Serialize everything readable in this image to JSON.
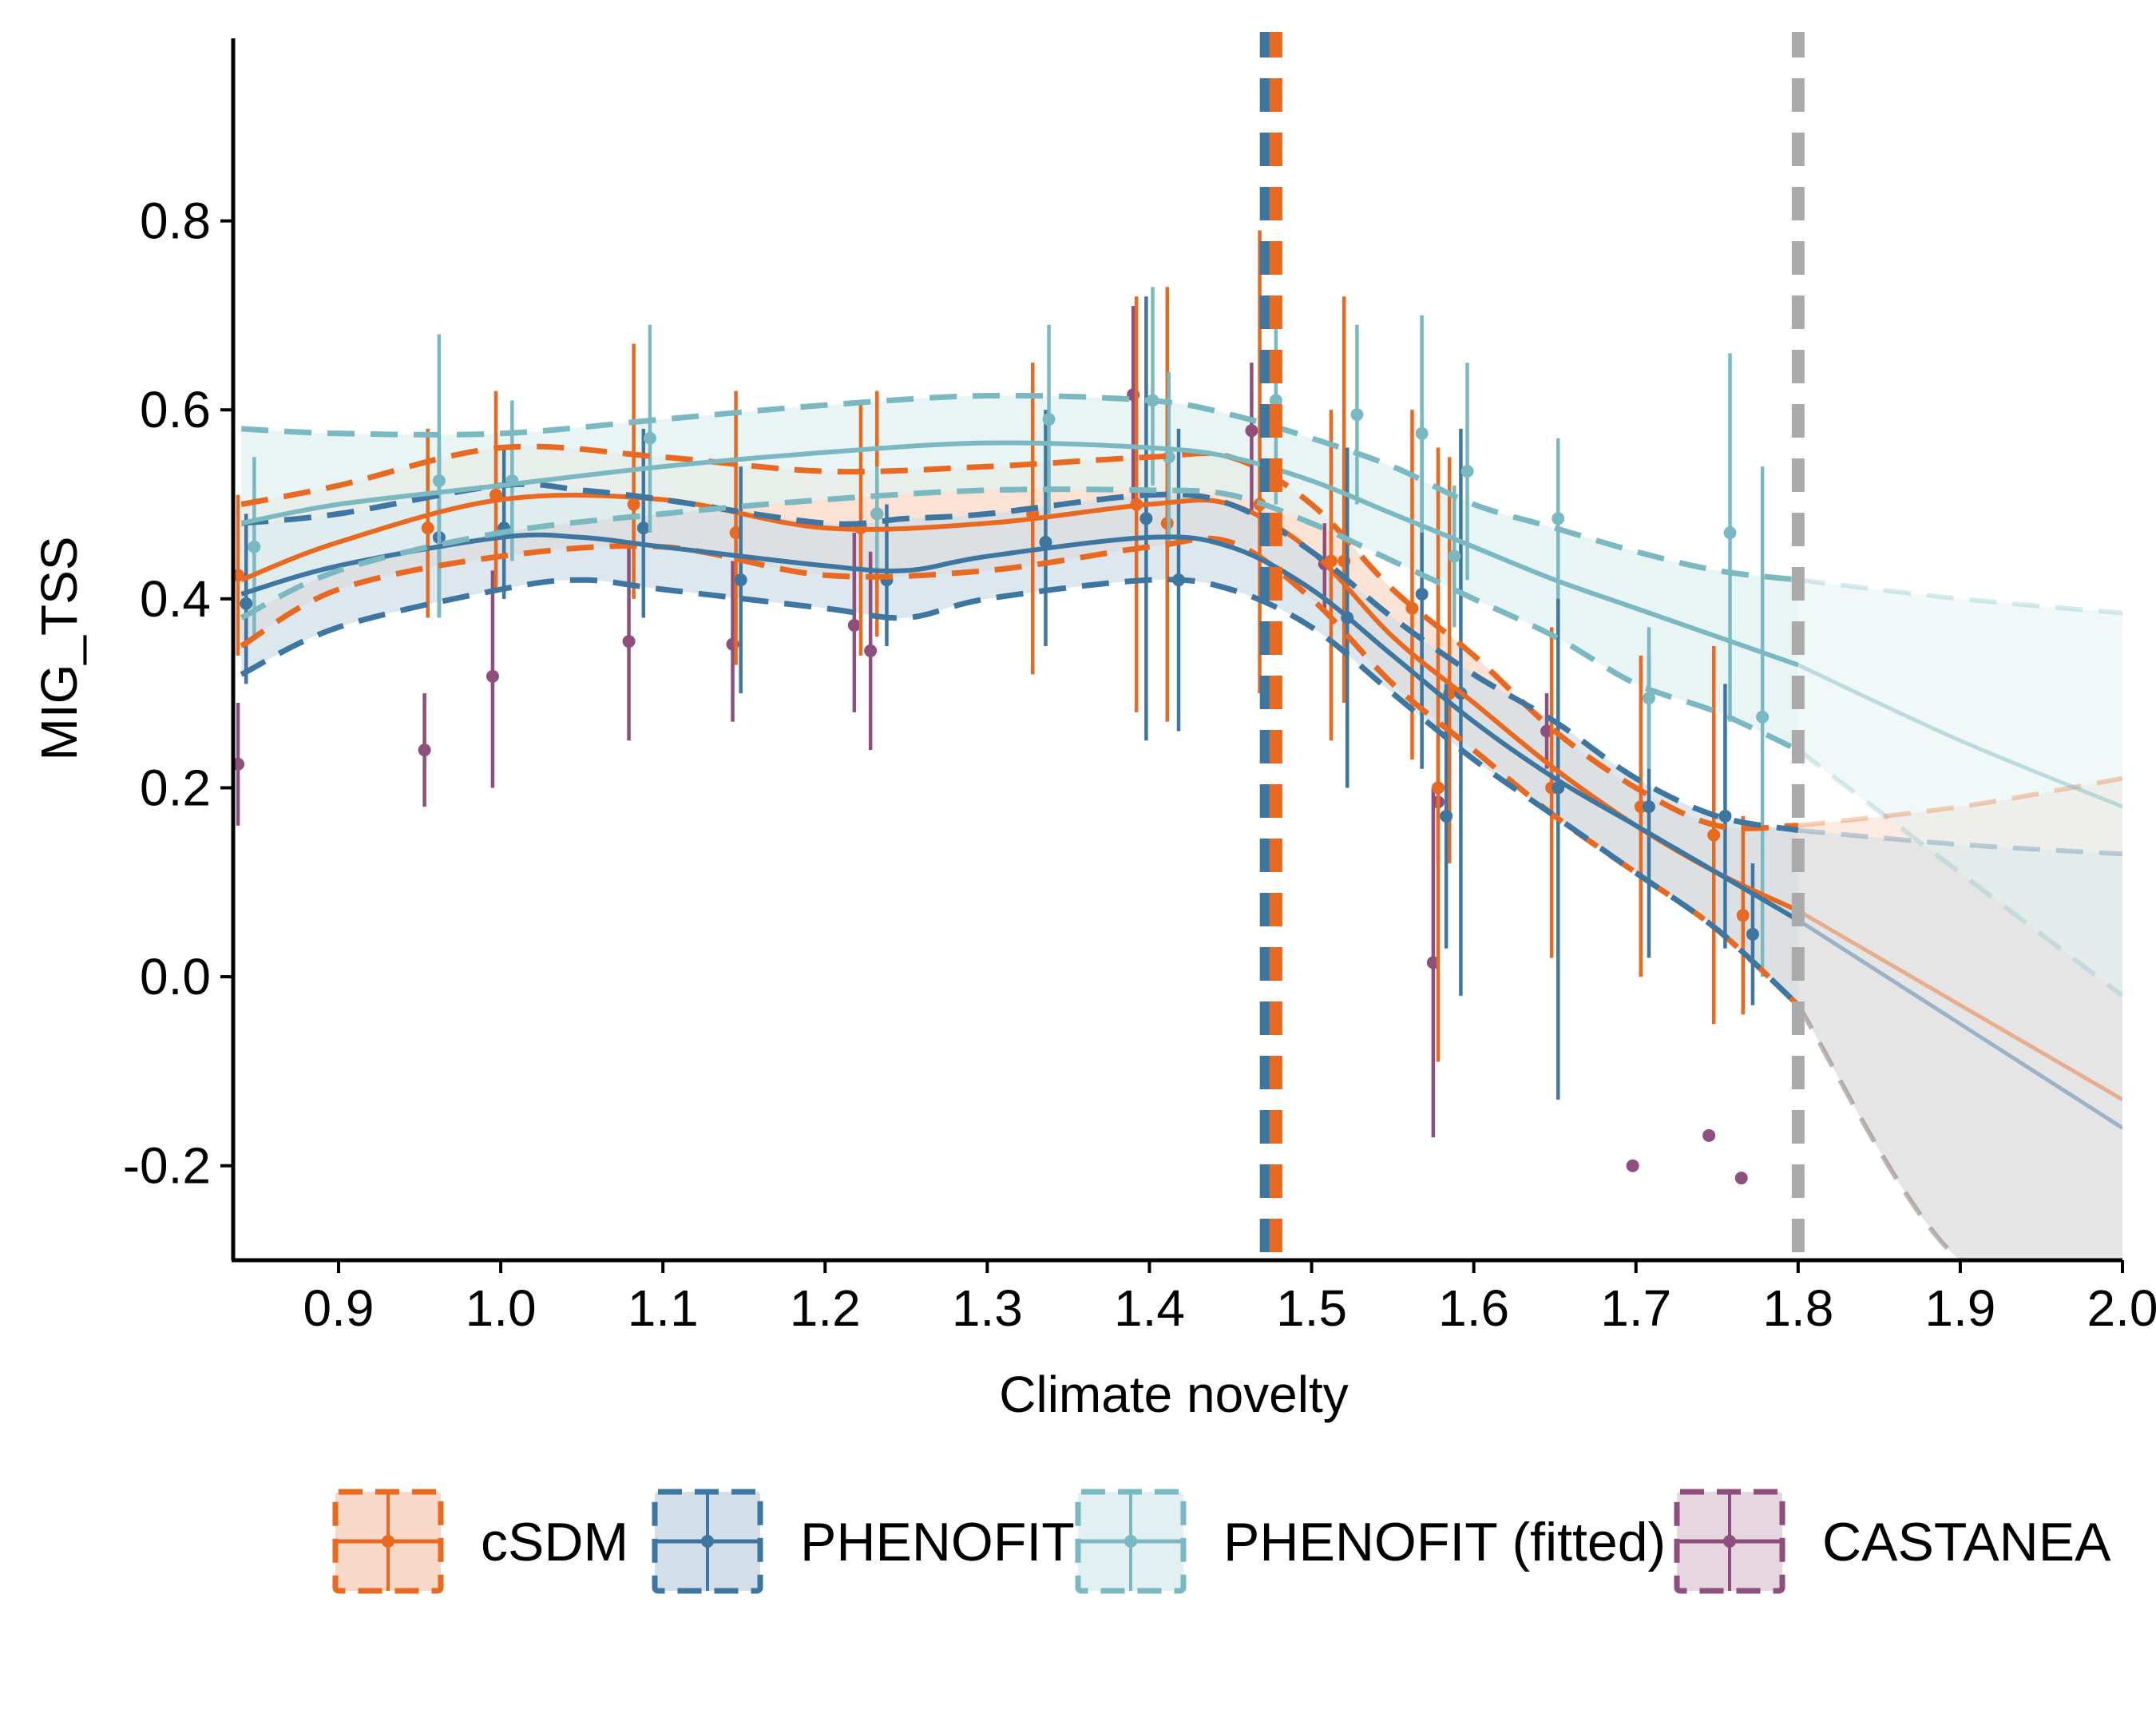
{
  "chart_data": {
    "type": "line",
    "title": "",
    "xlabel": "Climate novelty",
    "ylabel": "MIG_TSS",
    "xlim": [
      0.835,
      2.0
    ],
    "ylim": [
      -0.3,
      1.0
    ],
    "x_ticks": [
      0.9,
      1.0,
      1.1,
      1.2,
      1.3,
      1.4,
      1.5,
      1.6,
      1.7,
      1.8,
      1.9,
      2.0
    ],
    "x_tick_labels": [
      "0.9",
      "1.0",
      "1.1",
      "1.2",
      "1.3",
      "1.4",
      "1.5",
      "1.6",
      "1.7",
      "1.8",
      "1.9",
      "2.0"
    ],
    "y_ticks": [
      -0.2,
      0.0,
      0.2,
      0.4,
      0.6,
      0.8
    ],
    "y_tick_labels": [
      "-0.2",
      "0.0",
      "0.2",
      "0.4",
      "0.6",
      "0.8"
    ],
    "grid": false,
    "legend_position": "bottom",
    "vlines": [
      {
        "x": 1.472,
        "color": "#3d76a0",
        "style": "dashed"
      },
      {
        "x": 1.478,
        "color": "#e8691f",
        "style": "dashed"
      },
      {
        "x": 1.8,
        "color": "#aaaaaa",
        "style": "dashed"
      }
    ],
    "series": [
      {
        "name": "cSDM",
        "color": "#e8691f",
        "fit_x": [
          0.84,
          0.9,
          1.0,
          1.1,
          1.2,
          1.3,
          1.4,
          1.45,
          1.5,
          1.55,
          1.6,
          1.65,
          1.7,
          1.75,
          1.8
        ],
        "fit_y": [
          0.42,
          0.46,
          0.505,
          0.505,
          0.475,
          0.48,
          0.5,
          0.5,
          0.45,
          0.36,
          0.29,
          0.22,
          0.16,
          0.11,
          0.07
        ],
        "ci_low": [
          0.35,
          0.41,
          0.445,
          0.455,
          0.425,
          0.43,
          0.455,
          0.46,
          0.4,
          0.31,
          0.24,
          0.17,
          0.11,
          0.05,
          -0.03
        ],
        "ci_high": [
          0.5,
          0.52,
          0.56,
          0.55,
          0.535,
          0.54,
          0.55,
          0.55,
          0.5,
          0.41,
          0.34,
          0.26,
          0.2,
          0.16,
          0.16
        ],
        "extrap_x": [
          1.8,
          1.9,
          2.0
        ],
        "extrap_y": [
          0.07,
          -0.03,
          -0.13
        ],
        "extrap_low": [
          -0.03,
          -0.3,
          -0.3
        ],
        "extrap_high": [
          0.16,
          0.18,
          0.21
        ],
        "points": [
          {
            "x": 0.838,
            "y": 0.425,
            "lo": 0.34,
            "hi": 0.51
          },
          {
            "x": 0.955,
            "y": 0.475,
            "lo": 0.38,
            "hi": 0.58
          },
          {
            "x": 0.997,
            "y": 0.51,
            "lo": 0.41,
            "hi": 0.62
          },
          {
            "x": 1.082,
            "y": 0.5,
            "lo": 0.4,
            "hi": 0.67
          },
          {
            "x": 1.145,
            "y": 0.47,
            "lo": 0.33,
            "hi": 0.62
          },
          {
            "x": 1.222,
            "y": 0.475,
            "lo": 0.34,
            "hi": 0.61
          },
          {
            "x": 1.232,
            "y": 0.49,
            "lo": 0.36,
            "hi": 0.62
          },
          {
            "x": 1.328,
            "y": 0.49,
            "lo": 0.32,
            "hi": 0.65
          },
          {
            "x": 1.392,
            "y": 0.5,
            "lo": 0.28,
            "hi": 0.72
          },
          {
            "x": 1.411,
            "y": 0.48,
            "lo": 0.27,
            "hi": 0.73
          },
          {
            "x": 1.468,
            "y": 0.5,
            "lo": 0.3,
            "hi": 0.79
          },
          {
            "x": 1.512,
            "y": 0.44,
            "lo": 0.25,
            "hi": 0.6
          },
          {
            "x": 1.52,
            "y": 0.44,
            "lo": 0.29,
            "hi": 0.72
          },
          {
            "x": 1.562,
            "y": 0.39,
            "lo": 0.23,
            "hi": 0.6
          },
          {
            "x": 1.578,
            "y": 0.2,
            "lo": -0.09,
            "hi": 0.56
          },
          {
            "x": 1.585,
            "y": 0.3,
            "lo": 0.12,
            "hi": 0.55
          },
          {
            "x": 1.648,
            "y": 0.2,
            "lo": 0.02,
            "hi": 0.37
          },
          {
            "x": 1.703,
            "y": 0.18,
            "lo": 0.0,
            "hi": 0.34
          },
          {
            "x": 1.748,
            "y": 0.15,
            "lo": -0.05,
            "hi": 0.35
          },
          {
            "x": 1.766,
            "y": 0.065,
            "lo": -0.04,
            "hi": 0.17
          }
        ]
      },
      {
        "name": "PHENOFIT",
        "color": "#3d76a0",
        "fit_x": [
          0.84,
          0.9,
          1.0,
          1.05,
          1.1,
          1.2,
          1.25,
          1.3,
          1.4,
          1.45,
          1.5,
          1.55,
          1.6,
          1.65,
          1.7,
          1.75,
          1.8
        ],
        "fit_y": [
          0.405,
          0.435,
          0.465,
          0.465,
          0.455,
          0.435,
          0.43,
          0.445,
          0.465,
          0.455,
          0.41,
          0.34,
          0.27,
          0.21,
          0.16,
          0.11,
          0.06
        ],
        "ci_low": [
          0.32,
          0.37,
          0.41,
          0.42,
          0.41,
          0.39,
          0.38,
          0.4,
          0.42,
          0.41,
          0.37,
          0.3,
          0.23,
          0.17,
          0.11,
          0.05,
          -0.03
        ],
        "ci_high": [
          0.48,
          0.49,
          0.52,
          0.515,
          0.505,
          0.48,
          0.485,
          0.49,
          0.51,
          0.5,
          0.45,
          0.38,
          0.32,
          0.27,
          0.21,
          0.17,
          0.155
        ],
        "extrap_x": [
          1.8,
          1.9,
          2.0
        ],
        "extrap_y": [
          0.06,
          -0.05,
          -0.16
        ],
        "extrap_low": [
          -0.03,
          -0.3,
          -0.3
        ],
        "extrap_high": [
          0.155,
          0.14,
          0.13
        ],
        "points": [
          {
            "x": 0.843,
            "y": 0.395,
            "lo": 0.31,
            "hi": 0.49
          },
          {
            "x": 0.962,
            "y": 0.465,
            "lo": 0.38,
            "hi": 0.56
          },
          {
            "x": 1.002,
            "y": 0.475,
            "lo": 0.4,
            "hi": 0.56
          },
          {
            "x": 1.088,
            "y": 0.475,
            "lo": 0.38,
            "hi": 0.58
          },
          {
            "x": 1.148,
            "y": 0.42,
            "lo": 0.3,
            "hi": 0.54
          },
          {
            "x": 1.238,
            "y": 0.42,
            "lo": 0.35,
            "hi": 0.5
          },
          {
            "x": 1.336,
            "y": 0.46,
            "lo": 0.35,
            "hi": 0.6
          },
          {
            "x": 1.398,
            "y": 0.485,
            "lo": 0.25,
            "hi": 0.72
          },
          {
            "x": 1.418,
            "y": 0.42,
            "lo": 0.26,
            "hi": 0.58
          },
          {
            "x": 1.522,
            "y": 0.38,
            "lo": 0.2,
            "hi": 0.56
          },
          {
            "x": 1.568,
            "y": 0.405,
            "lo": 0.22,
            "hi": 0.59
          },
          {
            "x": 1.583,
            "y": 0.17,
            "lo": 0.03,
            "hi": 0.31
          },
          {
            "x": 1.592,
            "y": 0.3,
            "lo": -0.02,
            "hi": 0.58
          },
          {
            "x": 1.652,
            "y": 0.2,
            "lo": -0.13,
            "hi": 0.53
          },
          {
            "x": 1.708,
            "y": 0.18,
            "lo": 0.02,
            "hi": 0.34
          },
          {
            "x": 1.755,
            "y": 0.17,
            "lo": 0.03,
            "hi": 0.31
          },
          {
            "x": 1.772,
            "y": 0.045,
            "lo": -0.03,
            "hi": 0.12
          }
        ]
      },
      {
        "name": "PHENOFIT (fitted)",
        "color": "#7ab8c2",
        "fit_x": [
          0.84,
          0.9,
          1.0,
          1.1,
          1.2,
          1.3,
          1.4,
          1.45,
          1.5,
          1.55,
          1.6,
          1.65,
          1.7,
          1.75,
          1.8
        ],
        "fit_y": [
          0.48,
          0.5,
          0.52,
          0.54,
          0.555,
          0.565,
          0.56,
          0.55,
          0.525,
          0.49,
          0.455,
          0.42,
          0.39,
          0.36,
          0.33
        ],
        "ci_low": [
          0.38,
          0.43,
          0.47,
          0.49,
          0.505,
          0.515,
          0.515,
          0.51,
          0.48,
          0.44,
          0.4,
          0.36,
          0.31,
          0.28,
          0.24
        ],
        "ci_high": [
          0.58,
          0.575,
          0.575,
          0.59,
          0.605,
          0.615,
          0.61,
          0.595,
          0.57,
          0.54,
          0.5,
          0.475,
          0.45,
          0.43,
          0.42
        ],
        "extrap_x": [
          1.8,
          1.9,
          2.0
        ],
        "extrap_y": [
          0.33,
          0.25,
          0.18
        ],
        "extrap_low": [
          0.24,
          0.11,
          -0.02
        ],
        "extrap_high": [
          0.42,
          0.4,
          0.385
        ],
        "points": [
          {
            "x": 0.848,
            "y": 0.455,
            "lo": 0.36,
            "hi": 0.55
          },
          {
            "x": 0.962,
            "y": 0.525,
            "lo": 0.38,
            "hi": 0.68
          },
          {
            "x": 1.007,
            "y": 0.525,
            "lo": 0.44,
            "hi": 0.61
          },
          {
            "x": 1.092,
            "y": 0.57,
            "lo": 0.47,
            "hi": 0.69
          },
          {
            "x": 1.232,
            "y": 0.49,
            "lo": 0.43,
            "hi": 0.54
          },
          {
            "x": 1.338,
            "y": 0.59,
            "lo": 0.49,
            "hi": 0.69
          },
          {
            "x": 1.402,
            "y": 0.61,
            "lo": 0.52,
            "hi": 0.73
          },
          {
            "x": 1.412,
            "y": 0.55,
            "lo": 0.46,
            "hi": 0.64
          },
          {
            "x": 1.478,
            "y": 0.61,
            "lo": 0.5,
            "hi": 0.72
          },
          {
            "x": 1.528,
            "y": 0.595,
            "lo": 0.5,
            "hi": 0.69
          },
          {
            "x": 1.568,
            "y": 0.575,
            "lo": 0.47,
            "hi": 0.7
          },
          {
            "x": 1.588,
            "y": 0.445,
            "lo": 0.37,
            "hi": 0.52
          },
          {
            "x": 1.596,
            "y": 0.535,
            "lo": 0.42,
            "hi": 0.65
          },
          {
            "x": 1.652,
            "y": 0.485,
            "lo": 0.4,
            "hi": 0.57
          },
          {
            "x": 1.708,
            "y": 0.295,
            "lo": 0.22,
            "hi": 0.37
          },
          {
            "x": 1.758,
            "y": 0.47,
            "lo": 0.27,
            "hi": 0.66
          },
          {
            "x": 1.778,
            "y": 0.275,
            "lo": 0.0,
            "hi": 0.54
          }
        ]
      },
      {
        "name": "CASTANEA",
        "color": "#8e4f7e",
        "points": [
          {
            "x": 0.838,
            "y": 0.225,
            "lo": 0.16,
            "hi": 0.29
          },
          {
            "x": 0.953,
            "y": 0.24,
            "lo": 0.18,
            "hi": 0.3
          },
          {
            "x": 0.995,
            "y": 0.318,
            "lo": 0.2,
            "hi": 0.43
          },
          {
            "x": 1.079,
            "y": 0.355,
            "lo": 0.25,
            "hi": 0.46
          },
          {
            "x": 1.143,
            "y": 0.352,
            "lo": 0.27,
            "hi": 0.44
          },
          {
            "x": 1.218,
            "y": 0.372,
            "lo": 0.28,
            "hi": 0.47
          },
          {
            "x": 1.228,
            "y": 0.345,
            "lo": 0.24,
            "hi": 0.45
          },
          {
            "x": 1.39,
            "y": 0.616,
            "lo": 0.5,
            "hi": 0.71
          },
          {
            "x": 1.463,
            "y": 0.578,
            "lo": 0.49,
            "hi": 0.65
          },
          {
            "x": 1.508,
            "y": 0.437,
            "lo": 0.39,
            "hi": 0.48
          },
          {
            "x": 1.575,
            "y": 0.015,
            "lo": -0.17,
            "hi": 0.2
          },
          {
            "x": 1.578,
            "y": 0.185,
            "lo": 0.12,
            "hi": 0.25
          },
          {
            "x": 1.645,
            "y": 0.26,
            "lo": 0.22,
            "hi": 0.3
          },
          {
            "x": 1.698,
            "y": -0.2,
            "lo": -0.2,
            "hi": -0.2
          },
          {
            "x": 1.745,
            "y": -0.168,
            "lo": -0.168,
            "hi": -0.168
          },
          {
            "x": 1.765,
            "y": -0.213,
            "lo": -0.213,
            "hi": -0.213
          }
        ]
      }
    ]
  },
  "legend": {
    "items": [
      {
        "label": "cSDM",
        "color": "#e8691f",
        "fill": "#f8d8c6"
      },
      {
        "label": "PHENOFIT",
        "color": "#3d76a0",
        "fill": "#d2dfe8"
      },
      {
        "label": "PHENOFIT (fitted)",
        "color": "#7ab8c2",
        "fill": "#e1f1f2"
      },
      {
        "label": "CASTANEA",
        "color": "#8e4f7e",
        "fill": "#e6d6e0"
      }
    ]
  }
}
